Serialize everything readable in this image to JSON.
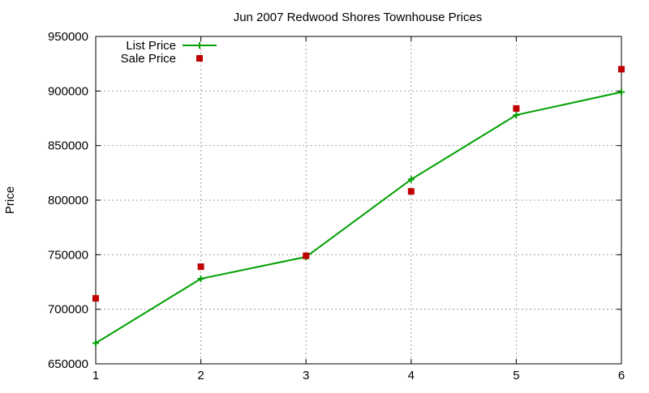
{
  "chart_data": {
    "type": "line",
    "title": "Jun 2007 Redwood Shores Townhouse Prices",
    "xlabel": "",
    "ylabel": "Price",
    "xlim": [
      1,
      6
    ],
    "ylim": [
      650000,
      950000
    ],
    "x_ticks": [
      "1",
      "2",
      "3",
      "4",
      "5",
      "6"
    ],
    "y_ticks": [
      "650000",
      "700000",
      "750000",
      "800000",
      "850000",
      "900000",
      "950000"
    ],
    "grid": true,
    "legend_position": "top-left",
    "series": [
      {
        "name": "List Price",
        "style": "line-with-plus-markers",
        "color": "#00a000",
        "x": [
          1,
          2,
          3,
          4,
          5,
          6
        ],
        "y": [
          669000,
          728000,
          748000,
          819000,
          878000,
          899000
        ]
      },
      {
        "name": "Sale Price",
        "style": "square-points",
        "color": "#c00000",
        "x": [
          1,
          2,
          3,
          4,
          5,
          6
        ],
        "y": [
          710000,
          739000,
          749000,
          808000,
          884000,
          920000
        ]
      }
    ]
  }
}
